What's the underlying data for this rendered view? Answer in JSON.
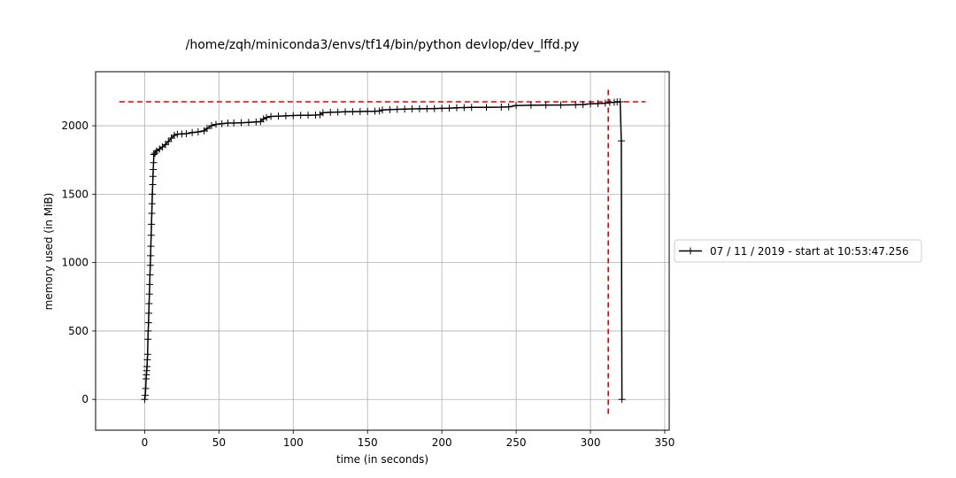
{
  "chart_data": {
    "type": "line",
    "title": "/home/zqh/miniconda3/envs/tf14/bin/python devlop/dev_lffd.py",
    "xlabel": "time (in seconds)",
    "ylabel": "memory used (in MiB)",
    "xlim": [
      -33,
      353
    ],
    "ylim": [
      -225,
      2395
    ],
    "xticks": [
      0,
      50,
      100,
      150,
      200,
      250,
      300,
      350
    ],
    "yticks": [
      0,
      500,
      1000,
      1500,
      2000
    ],
    "grid": true,
    "legend_position": "outside-right",
    "series": [
      {
        "name": "07 / 11 / 2019 - start at 10:53:47.256",
        "color": "#000000",
        "marker": "+",
        "points": [
          [
            0.0,
            0
          ],
          [
            0.4,
            30
          ],
          [
            0.7,
            80
          ],
          [
            1.0,
            150
          ],
          [
            1.2,
            180
          ],
          [
            1.4,
            210
          ],
          [
            1.6,
            240
          ],
          [
            1.8,
            290
          ],
          [
            2.0,
            330
          ],
          [
            2.2,
            440
          ],
          [
            2.4,
            500
          ],
          [
            2.6,
            560
          ],
          [
            2.8,
            630
          ],
          [
            3.0,
            700
          ],
          [
            3.2,
            770
          ],
          [
            3.4,
            840
          ],
          [
            3.6,
            910
          ],
          [
            3.8,
            980
          ],
          [
            4.0,
            1050
          ],
          [
            4.2,
            1120
          ],
          [
            4.4,
            1200
          ],
          [
            4.6,
            1280
          ],
          [
            4.8,
            1360
          ],
          [
            5.0,
            1430
          ],
          [
            5.2,
            1500
          ],
          [
            5.4,
            1570
          ],
          [
            5.6,
            1630
          ],
          [
            5.8,
            1680
          ],
          [
            6.0,
            1730
          ],
          [
            6.2,
            1790
          ],
          [
            7,
            1800
          ],
          [
            8,
            1815
          ],
          [
            10,
            1830
          ],
          [
            12,
            1845
          ],
          [
            14,
            1862
          ],
          [
            16,
            1885
          ],
          [
            18,
            1910
          ],
          [
            20,
            1930
          ],
          [
            22,
            1938
          ],
          [
            25,
            1940
          ],
          [
            28,
            1942
          ],
          [
            32,
            1950
          ],
          [
            36,
            1955
          ],
          [
            40,
            1962
          ],
          [
            42,
            1980
          ],
          [
            45,
            2000
          ],
          [
            48,
            2010
          ],
          [
            52,
            2015
          ],
          [
            56,
            2020
          ],
          [
            60,
            2020
          ],
          [
            65,
            2022
          ],
          [
            70,
            2025
          ],
          [
            75,
            2028
          ],
          [
            78,
            2030
          ],
          [
            80,
            2050
          ],
          [
            82,
            2060
          ],
          [
            85,
            2068
          ],
          [
            90,
            2070
          ],
          [
            95,
            2072
          ],
          [
            100,
            2075
          ],
          [
            105,
            2076
          ],
          [
            110,
            2077
          ],
          [
            115,
            2078
          ],
          [
            118,
            2080
          ],
          [
            120,
            2095
          ],
          [
            125,
            2098
          ],
          [
            130,
            2100
          ],
          [
            135,
            2102
          ],
          [
            140,
            2103
          ],
          [
            145,
            2104
          ],
          [
            150,
            2105
          ],
          [
            155,
            2106
          ],
          [
            158,
            2108
          ],
          [
            160,
            2115
          ],
          [
            165,
            2118
          ],
          [
            170,
            2120
          ],
          [
            175,
            2122
          ],
          [
            180,
            2123
          ],
          [
            185,
            2124
          ],
          [
            190,
            2125
          ],
          [
            195,
            2126
          ],
          [
            200,
            2127
          ],
          [
            205,
            2128
          ],
          [
            210,
            2132
          ],
          [
            215,
            2133
          ],
          [
            220,
            2134
          ],
          [
            230,
            2135
          ],
          [
            240,
            2136
          ],
          [
            245,
            2138
          ],
          [
            250,
            2148
          ],
          [
            260,
            2150
          ],
          [
            270,
            2151
          ],
          [
            280,
            2152
          ],
          [
            290,
            2153
          ],
          [
            295,
            2155
          ],
          [
            300,
            2160
          ],
          [
            305,
            2162
          ],
          [
            310,
            2165
          ],
          [
            313,
            2170
          ],
          [
            316,
            2172
          ],
          [
            318,
            2174
          ],
          [
            320,
            2175
          ],
          [
            320.8,
            1890
          ],
          [
            321.2,
            0
          ]
        ]
      }
    ],
    "reference_lines": [
      {
        "orientation": "horizontal",
        "value": 2175,
        "from": -17,
        "to": 337,
        "color": "#dd0000",
        "style": "dashed"
      },
      {
        "orientation": "vertical",
        "value": 312,
        "from": -105,
        "to": 2285,
        "color": "#dd0000",
        "style": "dashed"
      }
    ]
  }
}
